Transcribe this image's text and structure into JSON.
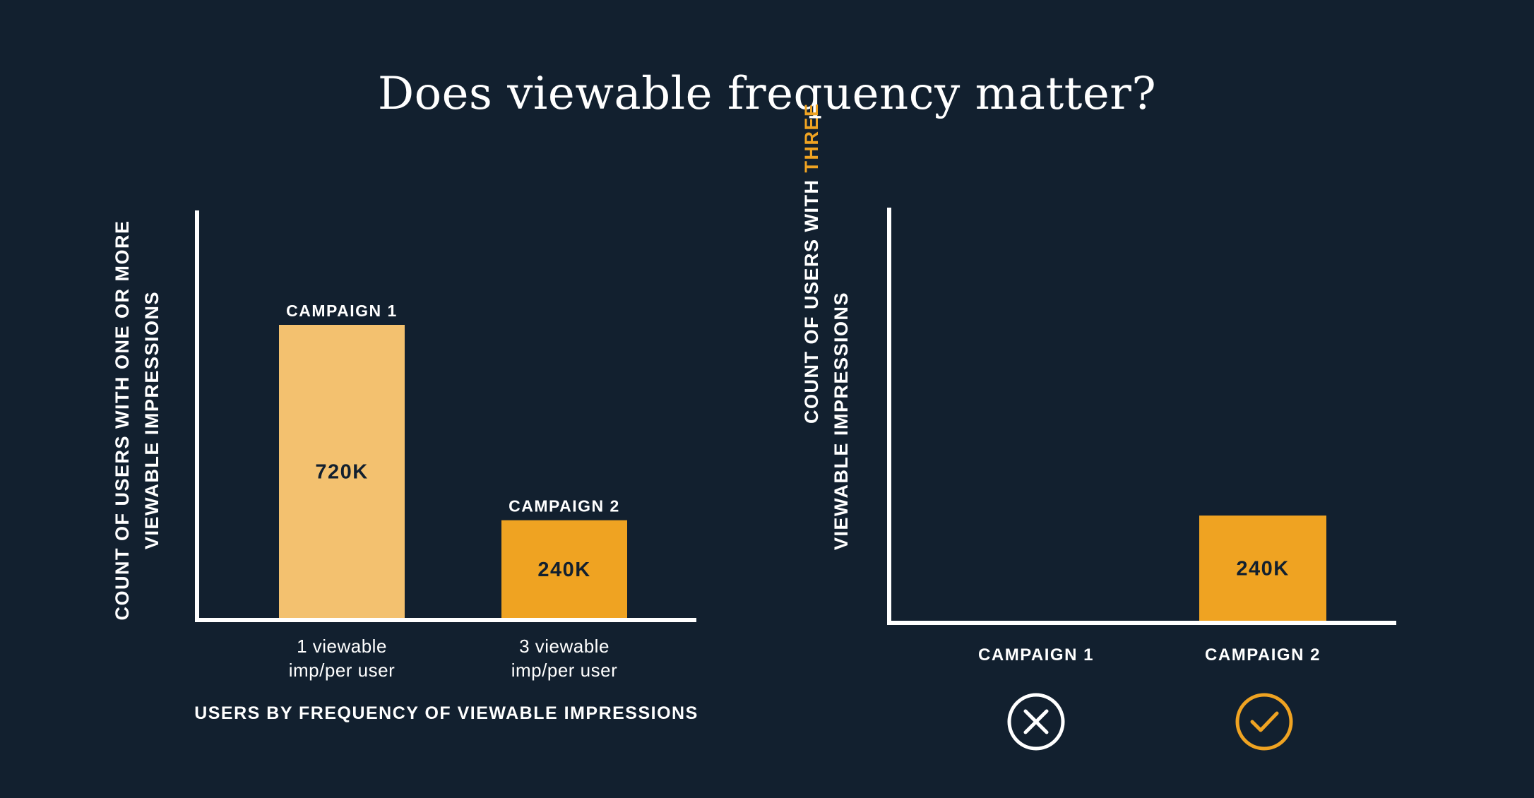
{
  "title": "Does viewable frequency matter?",
  "colors": {
    "background": "#12202f",
    "axis": "#ffffff",
    "campaign1_bar": "#f3c16f",
    "campaign2_bar": "#efa322",
    "highlight": "#efa322",
    "bar_value_text": "#12202f",
    "label_text": "#ffffff"
  },
  "chart_data": [
    {
      "type": "bar",
      "categories": [
        "1 viewable imp/per user",
        "3 viewable imp/per user"
      ],
      "category_lines": [
        [
          "1 viewable",
          "imp/per user"
        ],
        [
          "3 viewable",
          "imp/per user"
        ]
      ],
      "bar_names": [
        "CAMPAIGN 1",
        "CAMPAIGN 2"
      ],
      "values": [
        720000,
        240000
      ],
      "value_labels": [
        "720K",
        "240K"
      ],
      "ylabel_lines": [
        "COUNT OF USERS WITH ONE OR MORE",
        "VIEWABLE IMPRESSIONS"
      ],
      "xlabel": "USERS BY FREQUENCY OF VIEWABLE IMPRESSIONS",
      "ylim": [
        0,
        1000000
      ],
      "grid": false
    },
    {
      "type": "bar",
      "categories": [
        "CAMPAIGN 1",
        "CAMPAIGN 2"
      ],
      "values": [
        0,
        240000
      ],
      "value_labels": [
        "",
        "240K"
      ],
      "ylabel_line1": {
        "prefix": "COUNT OF USERS WITH ",
        "highlight": "THREE"
      },
      "ylabel_line2": "VIEWABLE IMPRESSIONS",
      "ylim": [
        0,
        1000000
      ],
      "grid": false,
      "result_icons": [
        "cross-circle-icon",
        "check-circle-icon"
      ]
    }
  ]
}
